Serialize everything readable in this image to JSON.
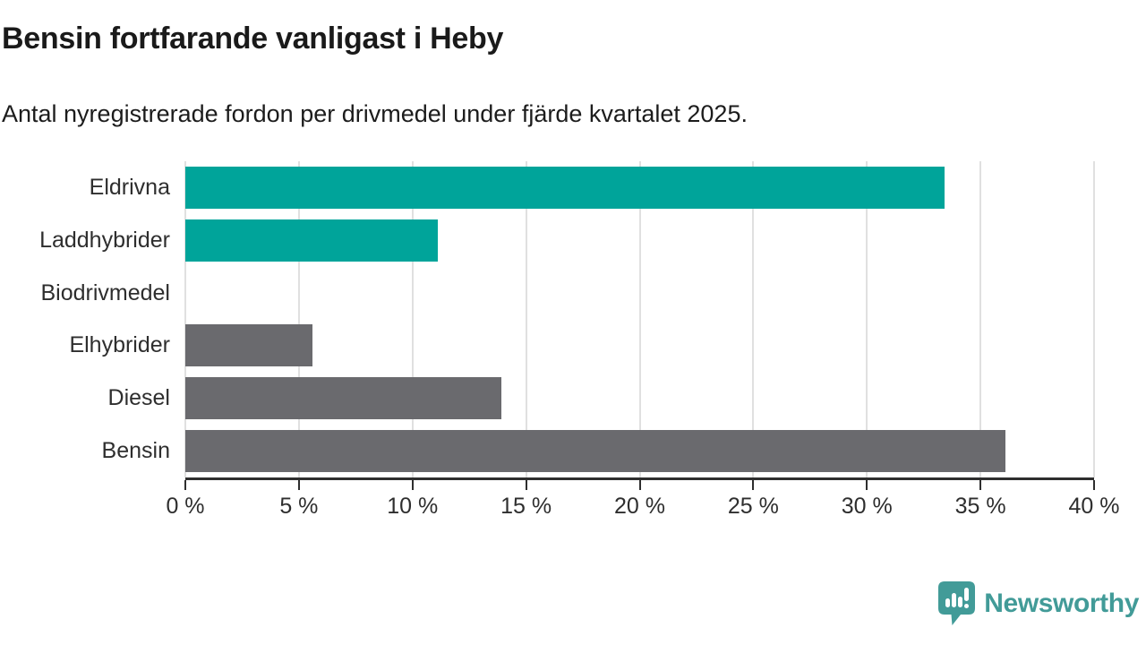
{
  "header": {
    "title": "Bensin fortfarande vanligast i Heby",
    "subtitle": "Antal nyregistrerade fordon per drivmedel under fjärde kvartalet 2025."
  },
  "chart_data": {
    "type": "bar",
    "orientation": "horizontal",
    "title": "Bensin fortfarande vanligast i Heby",
    "subtitle": "Antal nyregistrerade fordon per drivmedel under fjärde kvartalet 2025.",
    "categories": [
      "Eldrivna",
      "Laddhybrider",
      "Biodrivmedel",
      "Elhybrider",
      "Diesel",
      "Bensin"
    ],
    "values": [
      33.4,
      11.1,
      0,
      5.6,
      13.9,
      36.1
    ],
    "unit": "%",
    "xlabel": "",
    "ylabel": "",
    "xlim": [
      0,
      40
    ],
    "x_ticks": [
      0,
      5,
      10,
      15,
      20,
      25,
      30,
      35,
      40
    ],
    "x_tick_labels": [
      "0 %",
      "5 %",
      "10 %",
      "15 %",
      "20 %",
      "25 %",
      "30 %",
      "35 %",
      "40 %"
    ],
    "bar_colors": [
      "#00a49a",
      "#00a49a",
      "#6a6a6e",
      "#6a6a6e",
      "#6a6a6e",
      "#6a6a6e"
    ],
    "grid": true,
    "legend": "none"
  },
  "colors": {
    "teal": "#00a49a",
    "gray": "#6a6a6e",
    "grid": "#e0e0e0",
    "axis": "#2e2e2e",
    "logo": "#429b98",
    "title_text": "#1a1a1a"
  },
  "footer": {
    "brand": "Newsworthy",
    "brand_icon": "speech-bubble-bar-chart-icon"
  }
}
